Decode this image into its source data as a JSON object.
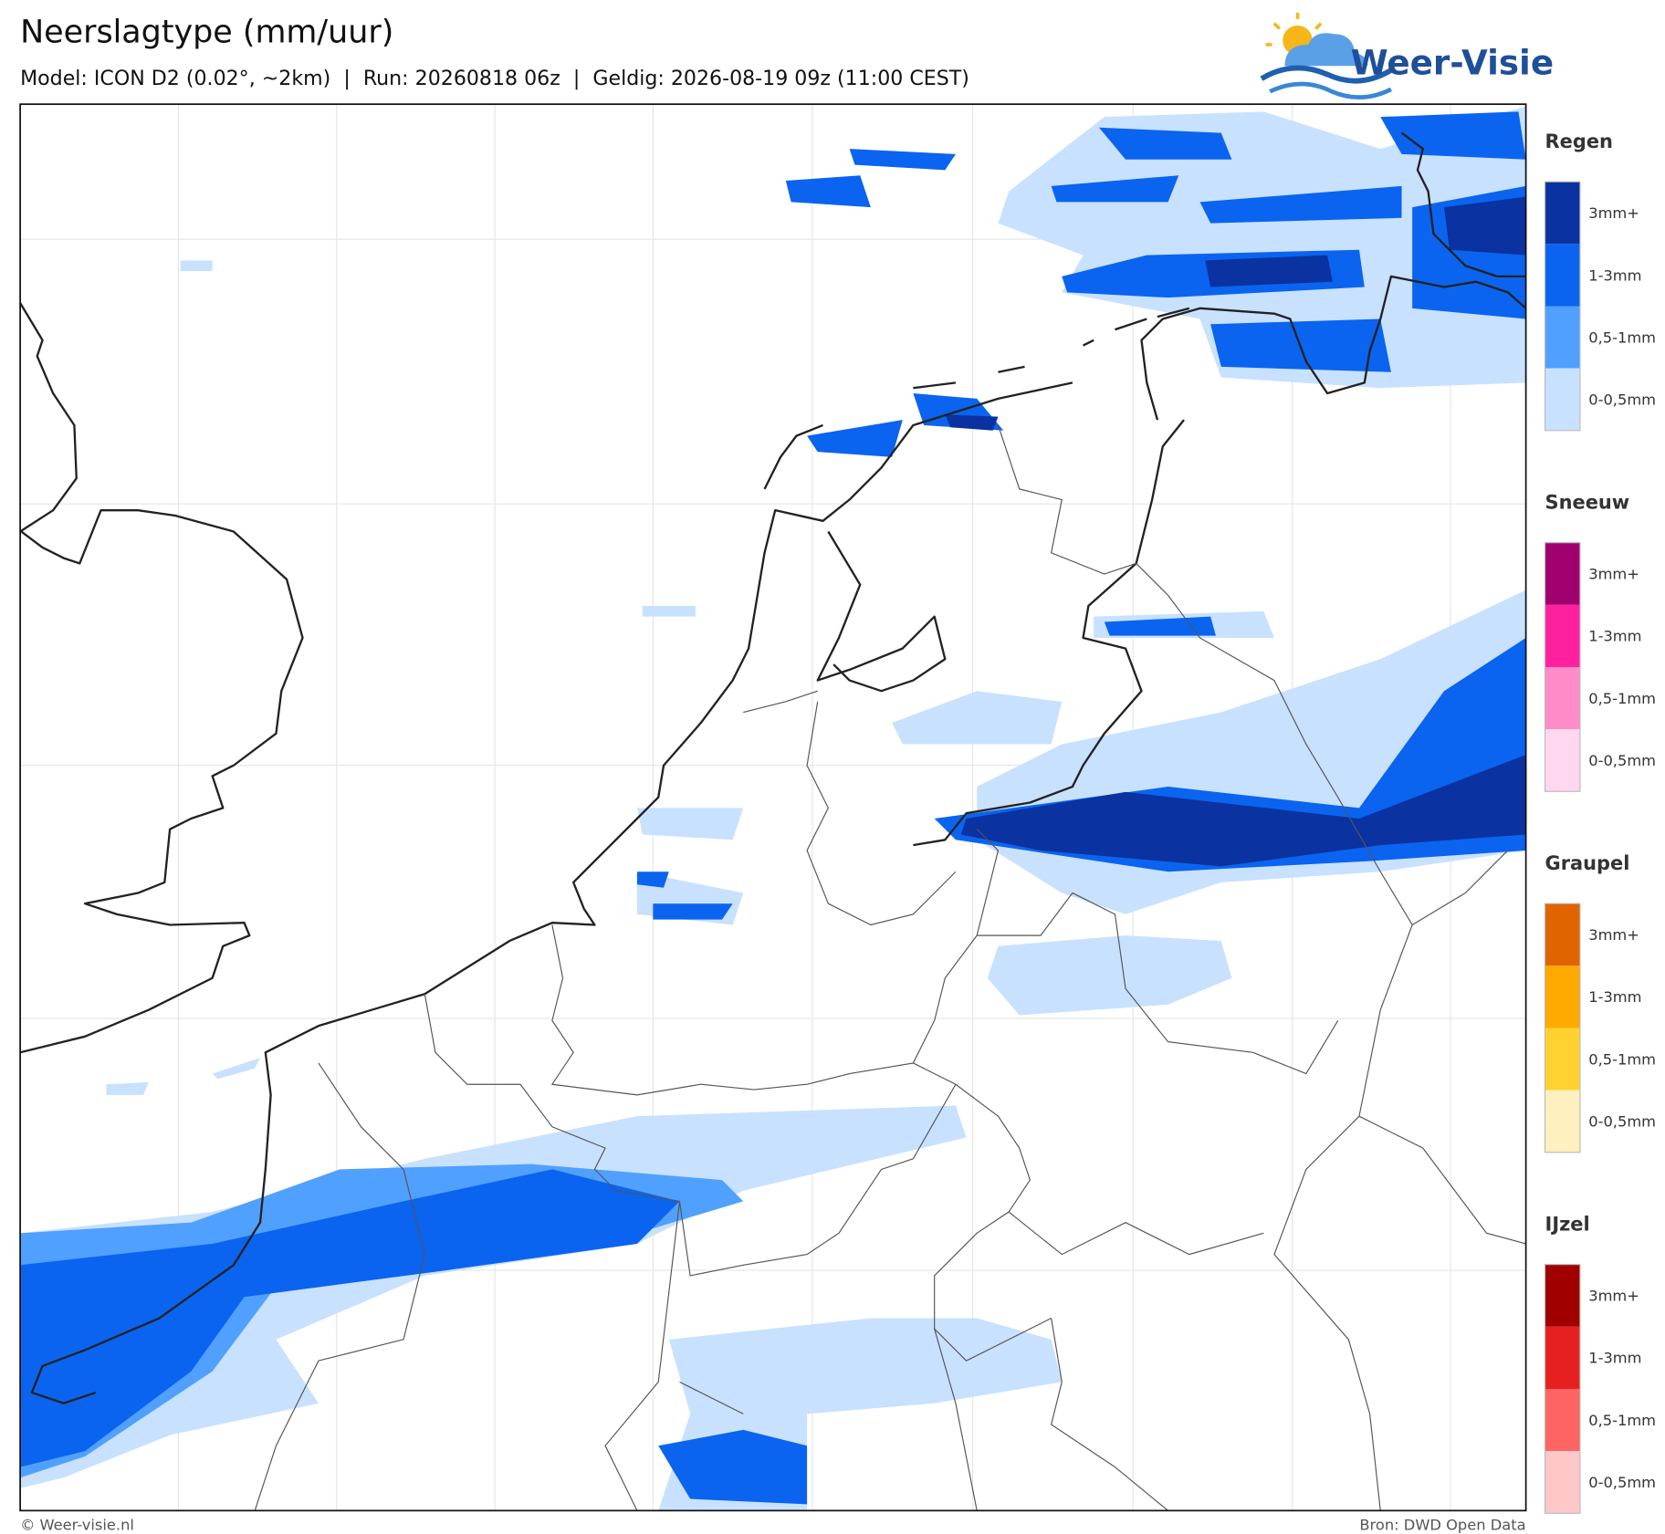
{
  "header": {
    "title": "Neerslagtype (mm/uur)",
    "subtitle": "Model: ICON D2 (0.02°, ~2km)  |  Run: 20260818 06z  |  Geldig: 2026-08-19 09z (11:00 CEST)"
  },
  "logo": {
    "text": "Weer-Visie"
  },
  "legend": {
    "sections": [
      {
        "title": "Regen",
        "items": [
          {
            "label": "3mm+",
            "color": "#0a32a0"
          },
          {
            "label": "1-3mm",
            "color": "#0a64f0"
          },
          {
            "label": "0,5-1mm",
            "color": "#50a0ff"
          },
          {
            "label": "0-0,5mm",
            "color": "#c8e1ff"
          }
        ]
      },
      {
        "title": "Sneeuw",
        "items": [
          {
            "label": "3mm+",
            "color": "#a0006e"
          },
          {
            "label": "1-3mm",
            "color": "#ff20a0"
          },
          {
            "label": "0,5-1mm",
            "color": "#ff8cc8"
          },
          {
            "label": "0-0,5mm",
            "color": "#ffd7ee"
          }
        ]
      },
      {
        "title": "Graupel",
        "items": [
          {
            "label": "3mm+",
            "color": "#e06400"
          },
          {
            "label": "1-3mm",
            "color": "#ffaa00"
          },
          {
            "label": "0,5-1mm",
            "color": "#ffd232"
          },
          {
            "label": "0-0,5mm",
            "color": "#fff0c0"
          }
        ]
      },
      {
        "title": "IJzel",
        "items": [
          {
            "label": "3mm+",
            "color": "#a00000"
          },
          {
            "label": "1-3mm",
            "color": "#e62020"
          },
          {
            "label": "0,5-1mm",
            "color": "#ff6464"
          },
          {
            "label": "0-0,5mm",
            "color": "#ffc8c8"
          }
        ]
      }
    ]
  },
  "footer": {
    "left": "© Weer-visie.nl",
    "right": "Bron: DWD Open Data"
  }
}
